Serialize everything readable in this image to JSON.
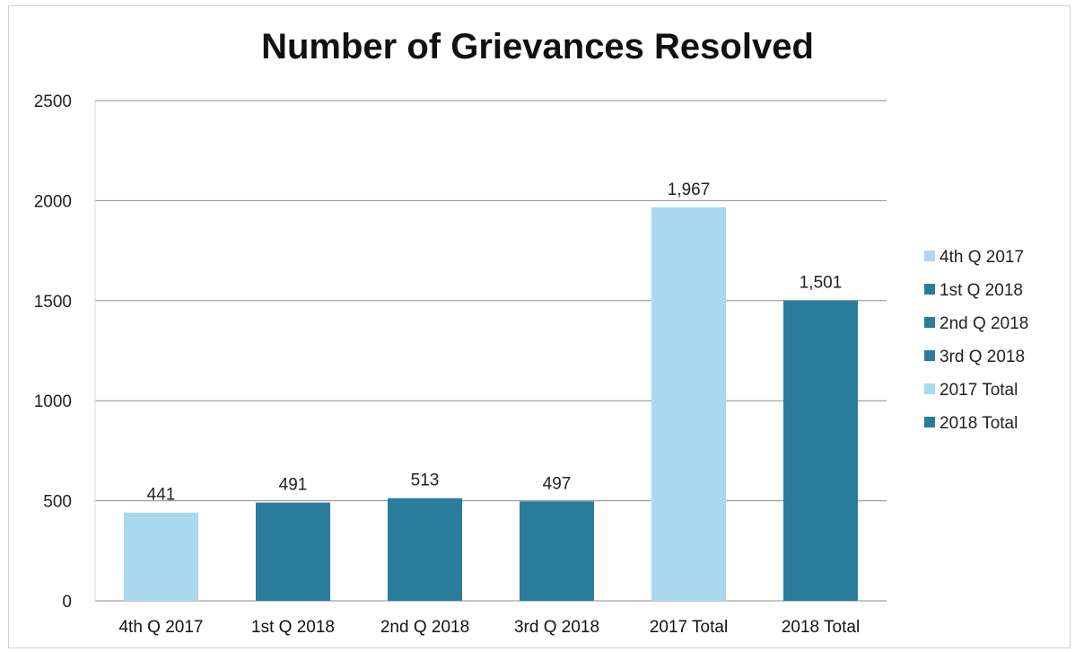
{
  "chart_data": {
    "type": "bar",
    "title": "Number of Grievances Resolved",
    "categories": [
      "4th Q 2017",
      "1st Q 2018",
      "2nd Q 2018",
      "3rd Q 2018",
      "2017 Total",
      "2018 Total"
    ],
    "values": [
      441,
      491,
      513,
      497,
      1967,
      1501
    ],
    "data_labels": [
      "441",
      "491",
      "513",
      "497",
      "1,967",
      "1,501"
    ],
    "bar_colors": [
      "#a9d9ef",
      "#2a7c9b",
      "#2a7c9b",
      "#2a7c9b",
      "#a9d9ef",
      "#2a7c9b"
    ],
    "ylim": [
      0,
      2500
    ],
    "y_ticks": [
      0,
      500,
      1000,
      1500,
      2000,
      2500
    ],
    "grid": true,
    "legend_position": "right",
    "legend": [
      {
        "label": "4th Q 2017",
        "color": "#a9d9ef"
      },
      {
        "label": "1st Q 2018",
        "color": "#2a7c9b"
      },
      {
        "label": "2nd Q 2018",
        "color": "#2a7c9b"
      },
      {
        "label": "3rd Q 2018",
        "color": "#2a7c9b"
      },
      {
        "label": "2017 Total",
        "color": "#a9d9ef"
      },
      {
        "label": "2018 Total",
        "color": "#2a7c9b"
      }
    ]
  }
}
